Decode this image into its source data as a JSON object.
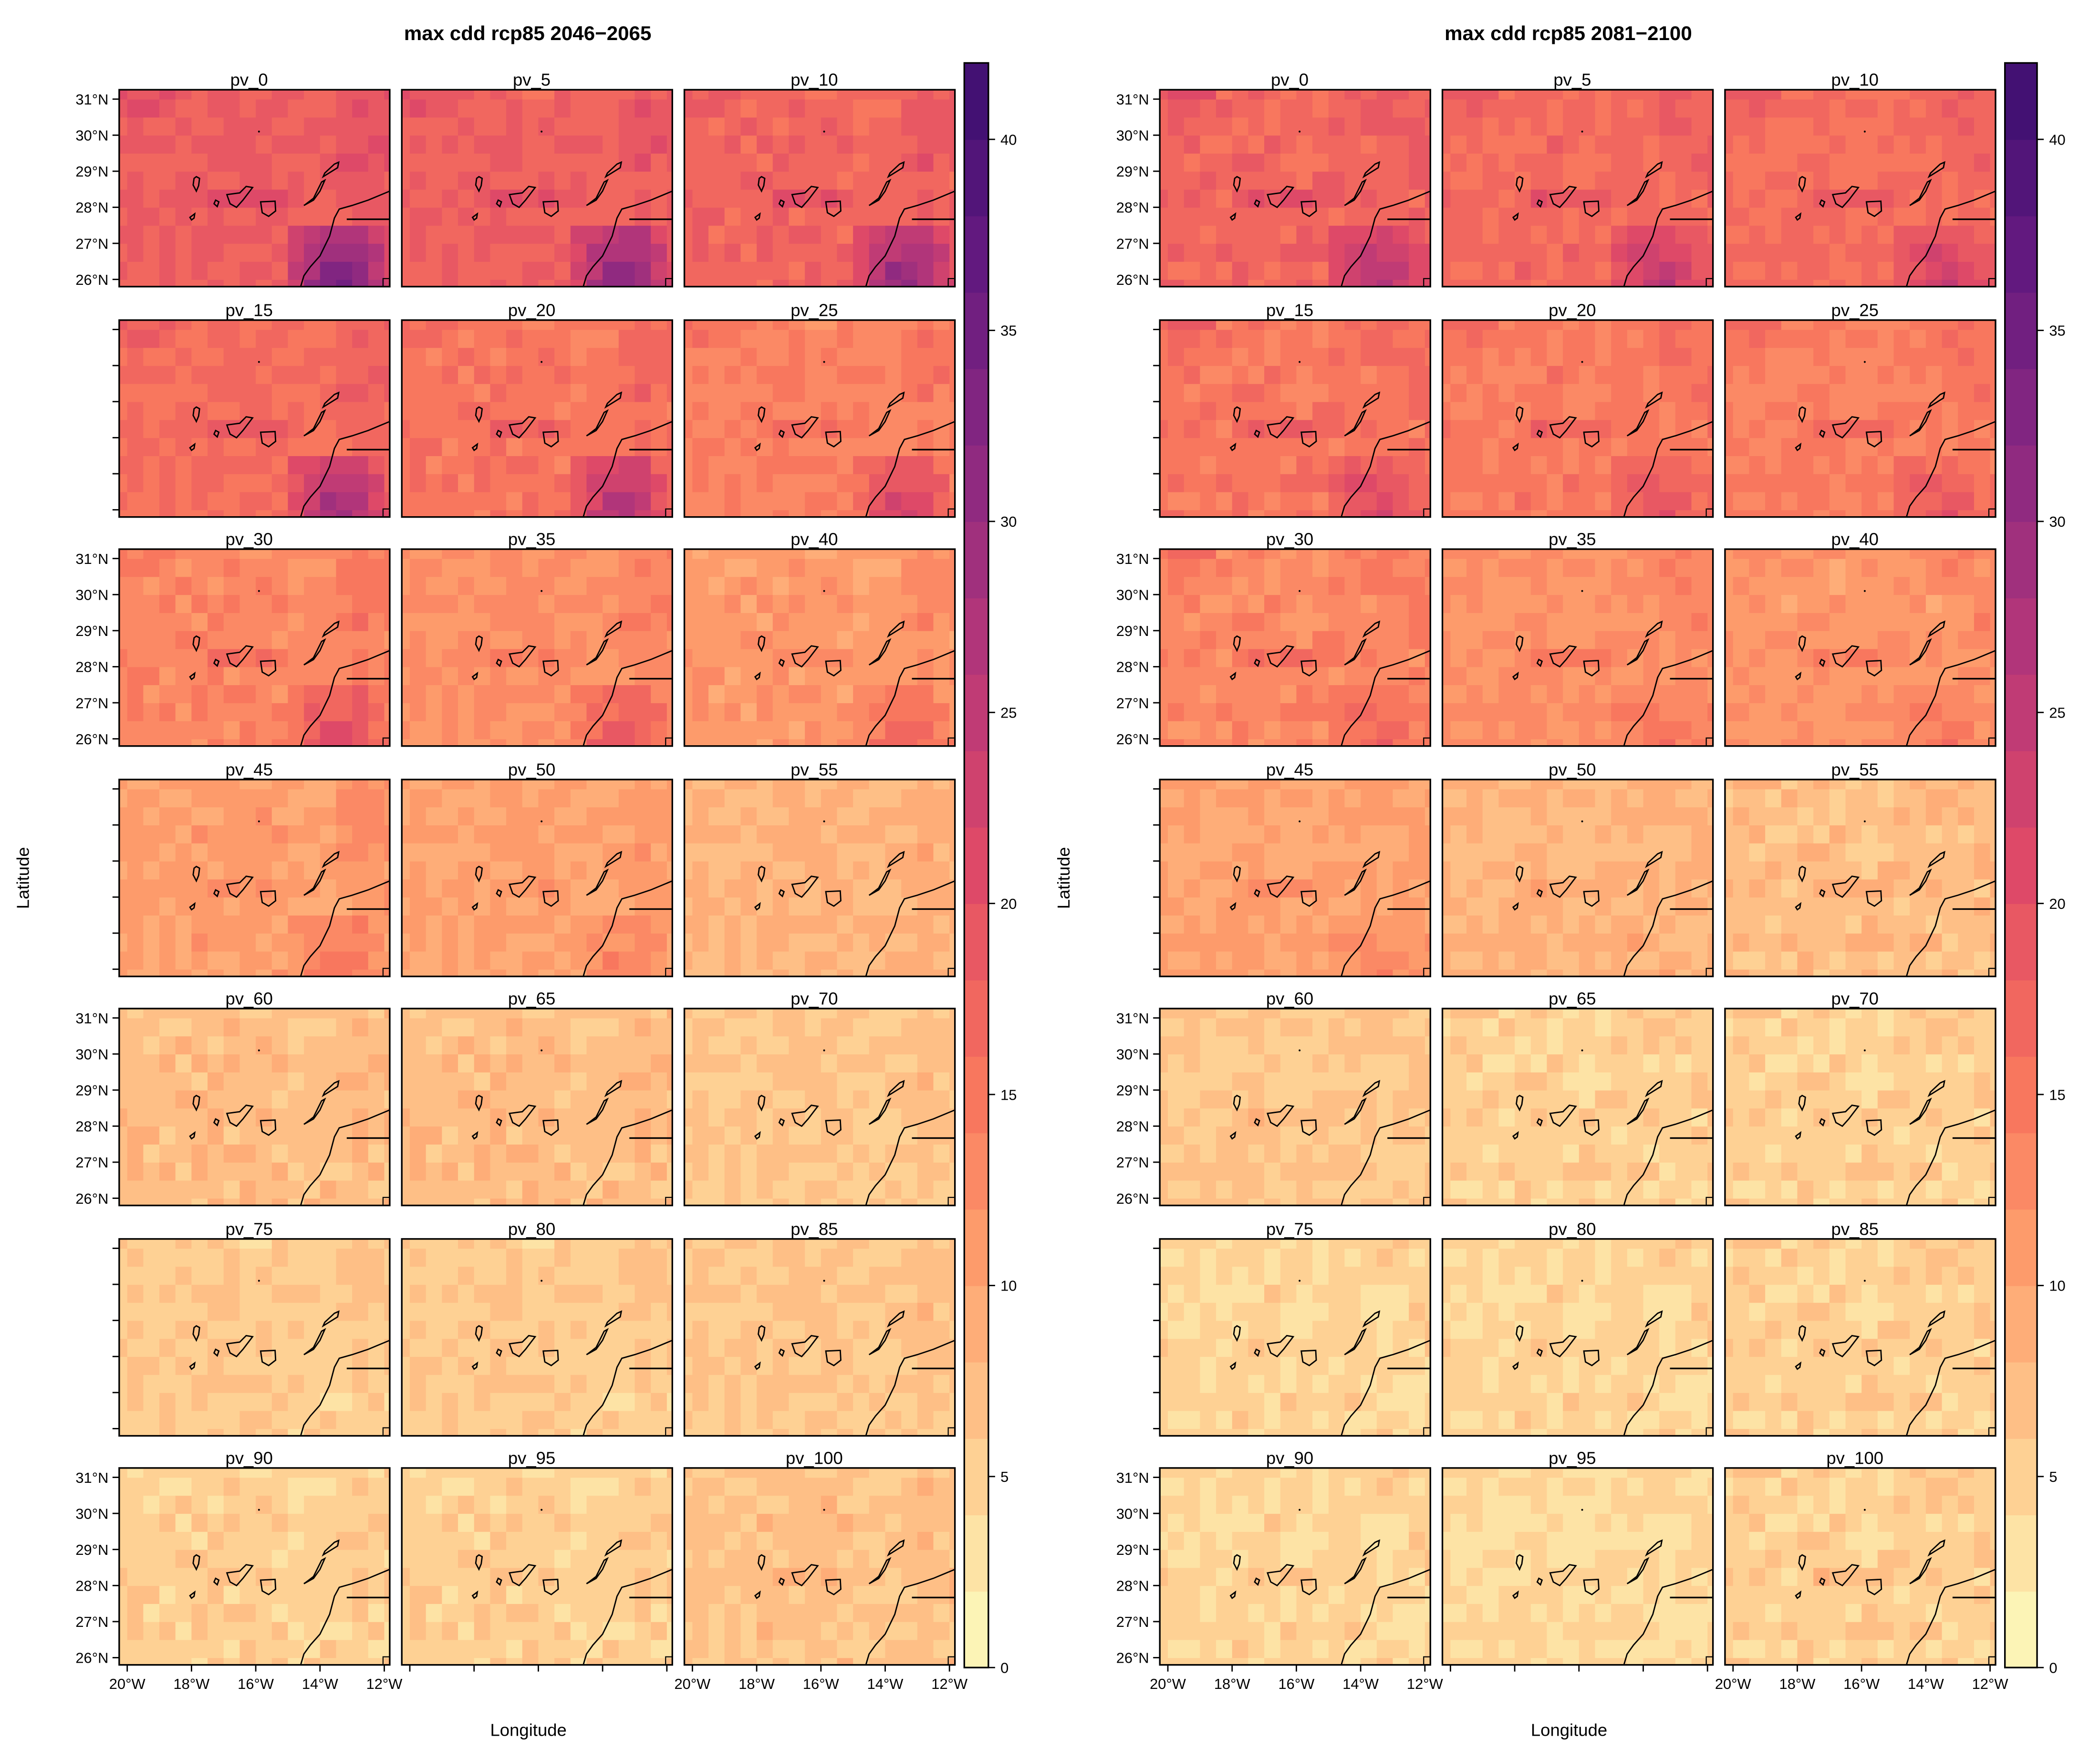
{
  "chart_data": [
    {
      "type": "heatmap",
      "title": "max cdd rcp85 2046−2065",
      "xlabel": "Longitude",
      "ylabel": "Latitude",
      "xlim": [
        -20.25,
        -11.83
      ],
      "ylim": [
        25.8,
        31.26
      ],
      "cell_size_deg": 0.5,
      "panels": [
        {
          "title": "pv_0",
          "mean": 18,
          "se_extra": 18,
          "island_extra": 4
        },
        {
          "title": "pv_5",
          "mean": 17.5,
          "se_extra": 16,
          "island_extra": 4
        },
        {
          "title": "pv_10",
          "mean": 17,
          "se_extra": 15,
          "island_extra": 4
        },
        {
          "title": "pv_15",
          "mean": 16,
          "se_extra": 14,
          "island_extra": 4
        },
        {
          "title": "pv_20",
          "mean": 15,
          "se_extra": 13,
          "island_extra": 4
        },
        {
          "title": "pv_25",
          "mean": 13.5,
          "se_extra": 10,
          "island_extra": 4
        },
        {
          "title": "pv_30",
          "mean": 13,
          "se_extra": 9,
          "island_extra": 4
        },
        {
          "title": "pv_35",
          "mean": 12,
          "se_extra": 8,
          "island_extra": 3
        },
        {
          "title": "pv_40",
          "mean": 11,
          "se_extra": 7,
          "island_extra": 3
        },
        {
          "title": "pv_45",
          "mean": 10.5,
          "se_extra": 5,
          "island_extra": 2
        },
        {
          "title": "pv_50",
          "mean": 10,
          "se_extra": 4,
          "island_extra": 2
        },
        {
          "title": "pv_55",
          "mean": 8,
          "se_extra": 1,
          "island_extra": 1
        },
        {
          "title": "pv_60",
          "mean": 7,
          "se_extra": 0,
          "island_extra": 1
        },
        {
          "title": "pv_65",
          "mean": 7,
          "se_extra": 0,
          "island_extra": 1
        },
        {
          "title": "pv_70",
          "mean": 6,
          "se_extra": 0,
          "island_extra": 1
        },
        {
          "title": "pv_75",
          "mean": 5.5,
          "se_extra": 0,
          "island_extra": 1
        },
        {
          "title": "pv_80",
          "mean": 5.5,
          "se_extra": 0,
          "island_extra": 1
        },
        {
          "title": "pv_85",
          "mean": 6,
          "se_extra": 0,
          "island_extra": 1
        },
        {
          "title": "pv_90",
          "mean": 5,
          "se_extra": 0,
          "island_extra": 2
        },
        {
          "title": "pv_95",
          "mean": 5,
          "se_extra": 0,
          "island_extra": 2
        },
        {
          "title": "pv_100",
          "mean": 6.5,
          "se_extra": 0,
          "island_extra": 3
        }
      ]
    },
    {
      "type": "heatmap",
      "title": "max cdd rcp85 2081−2100",
      "xlabel": "Longitude",
      "ylabel": "Latitude",
      "xlim": [
        -20.25,
        -11.83
      ],
      "ylim": [
        25.8,
        31.26
      ],
      "cell_size_deg": 0.5,
      "panels": [
        {
          "title": "pv_0",
          "mean": 17,
          "se_extra": 10,
          "island_extra": 4
        },
        {
          "title": "pv_5",
          "mean": 16.5,
          "se_extra": 9,
          "island_extra": 4
        },
        {
          "title": "pv_10",
          "mean": 16,
          "se_extra": 8,
          "island_extra": 4
        },
        {
          "title": "pv_15",
          "mean": 15,
          "se_extra": 7,
          "island_extra": 4
        },
        {
          "title": "pv_20",
          "mean": 14.5,
          "se_extra": 6,
          "island_extra": 4
        },
        {
          "title": "pv_25",
          "mean": 14,
          "se_extra": 6,
          "island_extra": 4
        },
        {
          "title": "pv_30",
          "mean": 13,
          "se_extra": 5,
          "island_extra": 4
        },
        {
          "title": "pv_35",
          "mean": 12,
          "se_extra": 4,
          "island_extra": 4
        },
        {
          "title": "pv_40",
          "mean": 11.5,
          "se_extra": 4,
          "island_extra": 3
        },
        {
          "title": "pv_45",
          "mean": 10,
          "se_extra": 4,
          "island_extra": 3
        },
        {
          "title": "pv_50",
          "mean": 8,
          "se_extra": 1,
          "island_extra": 2
        },
        {
          "title": "pv_55",
          "mean": 7,
          "se_extra": 0,
          "island_extra": 2
        },
        {
          "title": "pv_60",
          "mean": 6,
          "se_extra": 0,
          "island_extra": 2
        },
        {
          "title": "pv_65",
          "mean": 5,
          "se_extra": 0,
          "island_extra": 1
        },
        {
          "title": "pv_70",
          "mean": 5,
          "se_extra": 0,
          "island_extra": 1
        },
        {
          "title": "pv_75",
          "mean": 4.5,
          "se_extra": 0,
          "island_extra": 1
        },
        {
          "title": "pv_80",
          "mean": 4.5,
          "se_extra": 0,
          "island_extra": 1
        },
        {
          "title": "pv_85",
          "mean": 5,
          "se_extra": 0,
          "island_extra": 1
        },
        {
          "title": "pv_90",
          "mean": 4.5,
          "se_extra": 0,
          "island_extra": 2
        },
        {
          "title": "pv_95",
          "mean": 4,
          "se_extra": 0,
          "island_extra": 1
        },
        {
          "title": "pv_100",
          "mean": 5,
          "se_extra": 0,
          "island_extra": 3
        }
      ]
    }
  ],
  "lat_ticks": [
    {
      "value": 31,
      "label": "31°N"
    },
    {
      "value": 30,
      "label": "30°N"
    },
    {
      "value": 29,
      "label": "29°N"
    },
    {
      "value": 28,
      "label": "28°N"
    },
    {
      "value": 27,
      "label": "27°N"
    },
    {
      "value": 26,
      "label": "26°N"
    }
  ],
  "lon_ticks": [
    {
      "value": -20,
      "label": "20°W"
    },
    {
      "value": -18,
      "label": "18°W"
    },
    {
      "value": -16,
      "label": "16°W"
    },
    {
      "value": -14,
      "label": "14°W"
    },
    {
      "value": -12,
      "label": "12°W"
    }
  ],
  "colorbar": {
    "min": 0,
    "max": 42,
    "step": 2,
    "ticks": [
      0,
      5,
      10,
      15,
      20,
      25,
      30,
      35,
      40
    ],
    "palette": "magma (reversed)"
  }
}
